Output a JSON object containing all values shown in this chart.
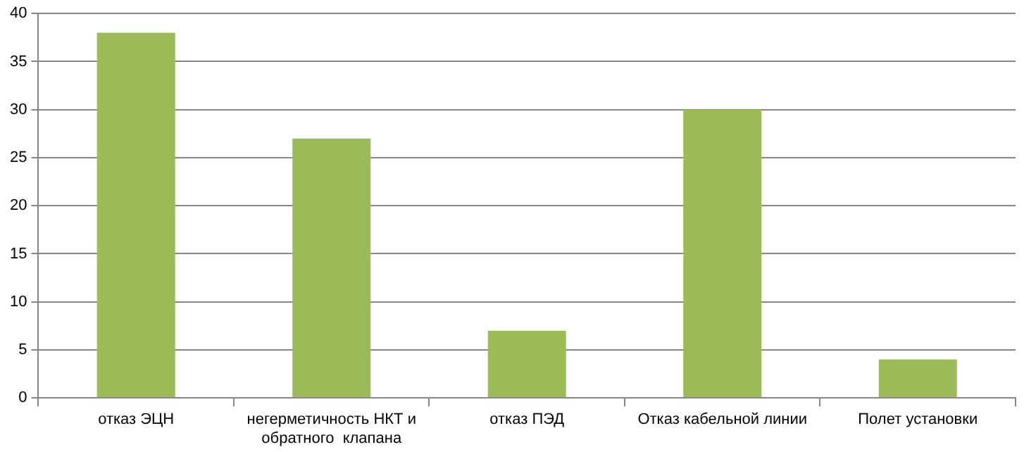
{
  "chart_data": {
    "type": "bar",
    "categories": [
      "отказ ЭЦН",
      "негерметичность НКТ и обратного  клапана",
      "отказ ПЭД",
      "Отказ кабельной линии",
      "Полет установки"
    ],
    "values": [
      38,
      27,
      7,
      30,
      4
    ],
    "color": "#9bbb59",
    "ylim": [
      0,
      40
    ],
    "yticks": [
      0,
      5,
      10,
      15,
      20,
      25,
      30,
      35,
      40
    ],
    "grid": "y",
    "legend": false
  }
}
